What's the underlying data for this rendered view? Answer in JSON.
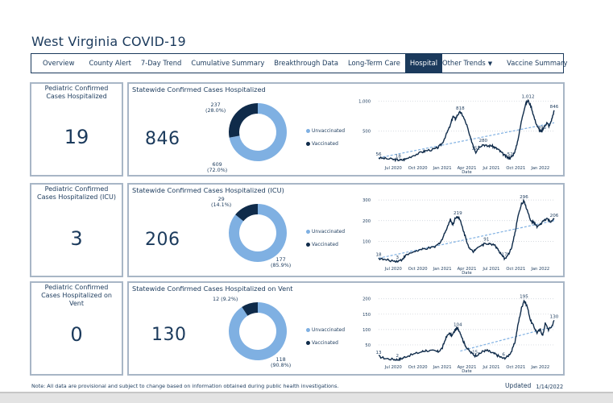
{
  "header": {
    "title": "West Virginia COVID-19"
  },
  "nav": {
    "items": [
      {
        "label": "Overview",
        "active": false
      },
      {
        "label": "County Alert",
        "active": false
      },
      {
        "label": "7-Day Trend",
        "active": false
      },
      {
        "label": "Cumulative Summary",
        "active": false
      },
      {
        "label": "Breakthrough Data",
        "active": false
      },
      {
        "label": "Long-Term Care",
        "active": false
      },
      {
        "label": "Hospital",
        "active": true
      },
      {
        "label": "Other Trends",
        "active": false,
        "dropdown": true,
        "icon": "caret-down-icon"
      },
      {
        "label": "Vaccine Summary",
        "active": false
      }
    ]
  },
  "colors": {
    "navy": "#1b3a5c",
    "dark_segment": "#0f2b4a",
    "light_segment": "#7fb0e2",
    "trend": "#7fb0e2",
    "border": "#a8b6c6"
  },
  "rows": [
    {
      "pediatric": {
        "title": "Pediatric Confirmed Cases Hospitalized",
        "value": "19"
      },
      "statewide": {
        "title": "Statewide Confirmed Cases Hospitalized",
        "value": "846",
        "donut": {
          "vaccinated": {
            "count": 237,
            "pct": "28.0%",
            "label_top": "237",
            "label_bottom": "(28.0%)"
          },
          "unvaccinated": {
            "count": 609,
            "pct": "72.0%",
            "label_top": "609",
            "label_bottom": "(72.0%)"
          }
        },
        "legend": [
          "Unvaccinated",
          "Vaccinated"
        ]
      }
    },
    {
      "pediatric": {
        "title": "Pediatric Confirmed Cases Hospitalized (ICU)",
        "value": "3"
      },
      "statewide": {
        "title": "Statewide Confirmed Cases Hospitalized (ICU)",
        "value": "206",
        "donut": {
          "vaccinated": {
            "count": 29,
            "pct": "14.1%",
            "label_top": "29",
            "label_bottom": "(14.1%)"
          },
          "unvaccinated": {
            "count": 177,
            "pct": "85.9%",
            "label_top": "177",
            "label_bottom": "(85.9%)"
          }
        },
        "legend": [
          "Unvaccinated",
          "Vaccinated"
        ]
      }
    },
    {
      "pediatric": {
        "title": "Pediatric Confirmed Cases Hospitalized on Vent",
        "value": "0"
      },
      "statewide": {
        "title": "Statewide Confirmed Cases Hospitalized on Vent",
        "value": "130",
        "donut": {
          "vaccinated": {
            "count": 12,
            "pct": "9.2%",
            "label_top": "12 (9.2%)",
            "label_bottom": ""
          },
          "unvaccinated": {
            "count": 118,
            "pct": "90.8%",
            "label_top": "118",
            "label_bottom": "(90.8%)"
          }
        },
        "legend": [
          "Unvaccinated",
          "Vaccinated"
        ]
      }
    }
  ],
  "chart_data": [
    {
      "type": "line",
      "title": "Hospitalized trend",
      "xlabel": "Date",
      "x_ticks": [
        "Jul 2020",
        "Oct 2020",
        "Jan 2021",
        "Apr 2021",
        "Jul 2021",
        "Oct 2021",
        "Jan 2022"
      ],
      "y_ticks": [
        "500",
        "1,000"
      ],
      "ylim": [
        0,
        1100
      ],
      "grid": true,
      "x_range_months": [
        -1.8,
        18.6
      ],
      "series": [
        {
          "name": "Hospitalized",
          "points": [
            [
              -1.8,
              56
            ],
            [
              -1,
              45
            ],
            [
              0,
              30
            ],
            [
              0.5,
              22
            ],
            [
              1,
              18
            ],
            [
              1.5,
              35
            ],
            [
              2.5,
              100
            ],
            [
              3.5,
              150
            ],
            [
              4,
              175
            ],
            [
              5,
              200
            ],
            [
              5.5,
              230
            ],
            [
              6,
              300
            ],
            [
              6.5,
              450
            ],
            [
              7,
              600
            ],
            [
              7.3,
              750
            ],
            [
              7.6,
              700
            ],
            [
              7.9,
              780
            ],
            [
              8.2,
              818
            ],
            [
              8.5,
              760
            ],
            [
              9,
              600
            ],
            [
              9.4,
              400
            ],
            [
              9.8,
              260
            ],
            [
              10.1,
              151
            ],
            [
              10.5,
              240
            ],
            [
              11,
              280
            ],
            [
              11.5,
              250
            ],
            [
              12,
              260
            ],
            [
              12.4,
              230
            ],
            [
              12.8,
              200
            ],
            [
              13.2,
              150
            ],
            [
              13.6,
              100
            ],
            [
              14,
              60
            ],
            [
              14.3,
              52
            ],
            [
              14.6,
              90
            ],
            [
              15,
              200
            ],
            [
              15.4,
              450
            ],
            [
              15.8,
              750
            ],
            [
              16.2,
              950
            ],
            [
              16.5,
              1012
            ],
            [
              16.9,
              900
            ],
            [
              17.3,
              700
            ],
            [
              17.7,
              560
            ],
            [
              18,
              500
            ],
            [
              18.2,
              496
            ],
            [
              18.5,
              580
            ],
            [
              18.8,
              640
            ],
            [
              19.1,
              580
            ],
            [
              19.4,
              700
            ],
            [
              19.7,
              846
            ]
          ]
        }
      ],
      "trend": {
        "start": [
          -1.8,
          56
        ],
        "end": [
          19.7,
          640
        ]
      },
      "annotations": [
        {
          "x": -1.8,
          "y": 56,
          "label": "56"
        },
        {
          "x": 0.6,
          "y": 18,
          "label": "18"
        },
        {
          "x": 8.2,
          "y": 818,
          "label": "818"
        },
        {
          "x": 10.1,
          "y": 151,
          "label": "151"
        },
        {
          "x": 11,
          "y": 280,
          "label": "280"
        },
        {
          "x": 14.3,
          "y": 52,
          "label": "52"
        },
        {
          "x": 16.5,
          "y": 1012,
          "label": "1,012"
        },
        {
          "x": 18.2,
          "y": 496,
          "label": "496"
        },
        {
          "x": 19.7,
          "y": 846,
          "label": "846"
        }
      ]
    },
    {
      "type": "line",
      "title": "ICU trend",
      "xlabel": "Date",
      "x_ticks": [
        "Jul 2020",
        "Oct 2020",
        "Jan 2021",
        "Apr 2021",
        "Jul 2021",
        "Oct 2021",
        "Jan 2022"
      ],
      "y_ticks": [
        "100",
        "200",
        "300"
      ],
      "ylim": [
        0,
        320
      ],
      "grid": true,
      "x_range_months": [
        -1.8,
        18.6
      ],
      "series": [
        {
          "name": "ICU",
          "points": [
            [
              -1.8,
              18
            ],
            [
              -1,
              10
            ],
            [
              0,
              5
            ],
            [
              0.5,
              3
            ],
            [
              1,
              10
            ],
            [
              1.5,
              30
            ],
            [
              2.5,
              50
            ],
            [
              3.5,
              60
            ],
            [
              4,
              65
            ],
            [
              5,
              70
            ],
            [
              5.5,
              85
            ],
            [
              6,
              110
            ],
            [
              6.5,
              160
            ],
            [
              7,
              205
            ],
            [
              7.3,
              180
            ],
            [
              7.6,
              215
            ],
            [
              7.9,
              219
            ],
            [
              8.2,
              200
            ],
            [
              8.6,
              150
            ],
            [
              9,
              100
            ],
            [
              9.4,
              60
            ],
            [
              9.8,
              50
            ],
            [
              10.2,
              70
            ],
            [
              10.8,
              80
            ],
            [
              11.4,
              91
            ],
            [
              11.9,
              85
            ],
            [
              12.4,
              85
            ],
            [
              12.8,
              60
            ],
            [
              13.2,
              35
            ],
            [
              13.6,
              17
            ],
            [
              14,
              30
            ],
            [
              14.5,
              70
            ],
            [
              14.9,
              140
            ],
            [
              15.3,
              230
            ],
            [
              15.7,
              280
            ],
            [
              16,
              296
            ],
            [
              16.4,
              250
            ],
            [
              16.8,
              200
            ],
            [
              17.2,
              190
            ],
            [
              17.6,
              170
            ],
            [
              18,
              180
            ],
            [
              18.4,
              200
            ],
            [
              18.8,
              210
            ],
            [
              19.2,
              195
            ],
            [
              19.7,
              206
            ]
          ]
        }
      ],
      "trend": {
        "start": [
          -1.8,
          18
        ],
        "end": [
          19.7,
          200
        ]
      },
      "annotations": [
        {
          "x": -1.8,
          "y": 18,
          "label": "18"
        },
        {
          "x": 0.5,
          "y": 3,
          "label": "3"
        },
        {
          "x": 7.9,
          "y": 219,
          "label": "219"
        },
        {
          "x": 11.4,
          "y": 91,
          "label": "91"
        },
        {
          "x": 13.6,
          "y": 17,
          "label": "17"
        },
        {
          "x": 16,
          "y": 296,
          "label": "296"
        },
        {
          "x": 19.7,
          "y": 206,
          "label": "206"
        }
      ]
    },
    {
      "type": "line",
      "title": "Vent trend",
      "xlabel": "Date",
      "x_ticks": [
        "Jul 2020",
        "Oct 2020",
        "Jan 2021",
        "Apr 2021",
        "Jul 2021",
        "Oct 2021",
        "Jan 2022"
      ],
      "y_ticks": [
        "50",
        "100",
        "150",
        "200"
      ],
      "ylim": [
        0,
        215
      ],
      "grid": true,
      "x_range_months": [
        -1.8,
        18.6
      ],
      "series": [
        {
          "name": "Vent",
          "points": [
            [
              -1.8,
              13
            ],
            [
              -1,
              6
            ],
            [
              0,
              3
            ],
            [
              0.5,
              2
            ],
            [
              1,
              5
            ],
            [
              1.5,
              12
            ],
            [
              2.5,
              20
            ],
            [
              3.5,
              28
            ],
            [
              4,
              32
            ],
            [
              5,
              30
            ],
            [
              5.5,
              28
            ],
            [
              6,
              40
            ],
            [
              6.4,
              70
            ],
            [
              6.8,
              88
            ],
            [
              7.2,
              80
            ],
            [
              7.6,
              100
            ],
            [
              7.9,
              104
            ],
            [
              8.2,
              90
            ],
            [
              8.6,
              60
            ],
            [
              9,
              40
            ],
            [
              9.5,
              25
            ],
            [
              10,
              15
            ],
            [
              10.5,
              20
            ],
            [
              11,
              30
            ],
            [
              11.5,
              32
            ],
            [
              12,
              25
            ],
            [
              12.5,
              20
            ],
            [
              13,
              12
            ],
            [
              13.5,
              6
            ],
            [
              14,
              12
            ],
            [
              14.5,
              30
            ],
            [
              14.9,
              60
            ],
            [
              15.3,
              120
            ],
            [
              15.7,
              170
            ],
            [
              16,
              195
            ],
            [
              16.4,
              175
            ],
            [
              16.8,
              130
            ],
            [
              17.2,
              110
            ],
            [
              17.6,
              90
            ],
            [
              18,
              100
            ],
            [
              18.3,
              80
            ],
            [
              18.6,
              120
            ],
            [
              19,
              100
            ],
            [
              19.4,
              110
            ],
            [
              19.7,
              130
            ]
          ]
        }
      ],
      "trend": {
        "start": [
          8.2,
          30
        ],
        "end": [
          19.7,
          110
        ]
      },
      "annotations": [
        {
          "x": -1.8,
          "y": 13,
          "label": "13"
        },
        {
          "x": 0.5,
          "y": 2,
          "label": "2"
        },
        {
          "x": 7.9,
          "y": 104,
          "label": "104"
        },
        {
          "x": 10,
          "y": 15,
          "label": "15"
        },
        {
          "x": 13.5,
          "y": 6,
          "label": "6"
        },
        {
          "x": 16,
          "y": 195,
          "label": "195"
        },
        {
          "x": 19.7,
          "y": 130,
          "label": "130"
        }
      ]
    }
  ],
  "footer": {
    "note": "Note: All data are provisional and subject to change based on information obtained during public health investigations.",
    "updated_label": "Updated",
    "updated_date": "1/14/2022"
  }
}
